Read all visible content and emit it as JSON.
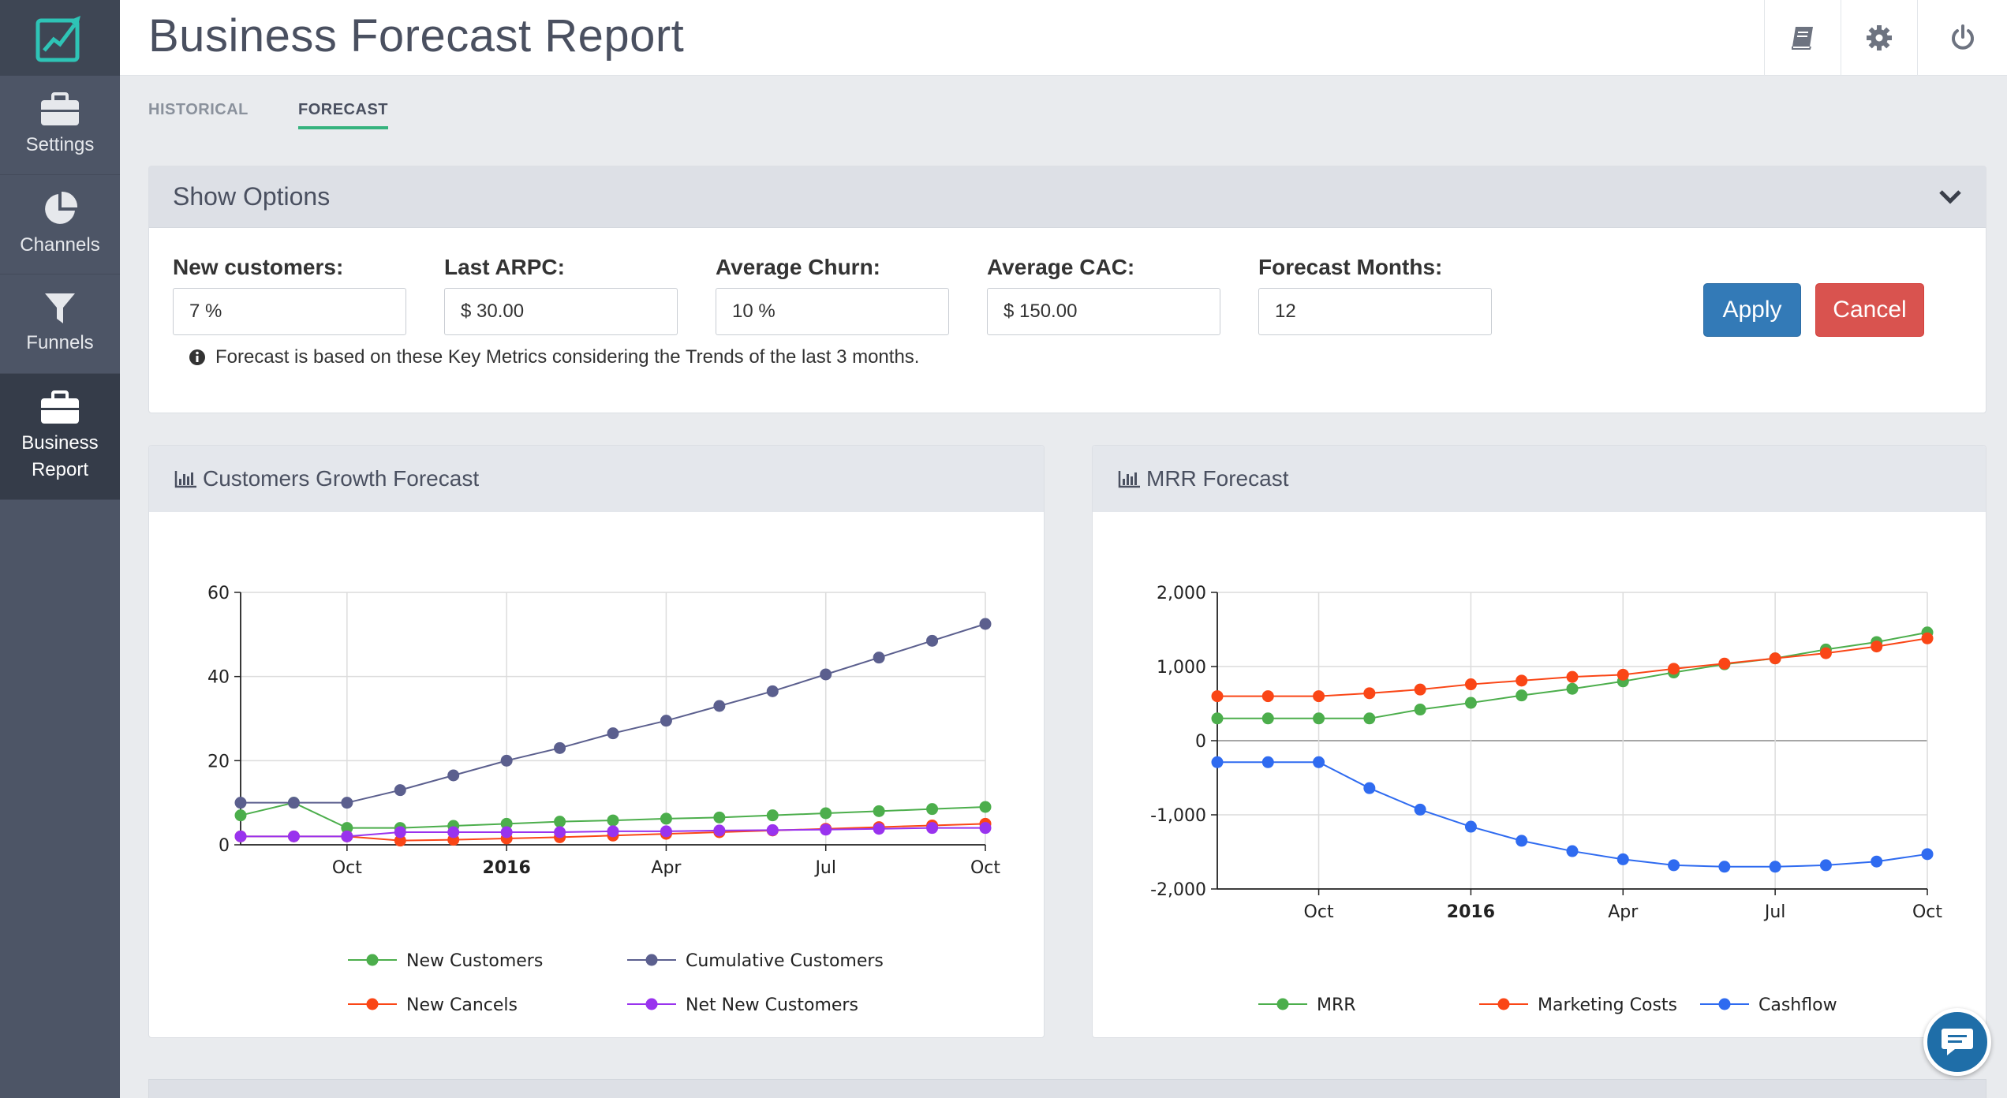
{
  "app": {
    "page_title": "Business Forecast Report"
  },
  "sidebar": {
    "items": [
      {
        "label": "Settings",
        "icon": "briefcase-icon"
      },
      {
        "label": "Channels",
        "icon": "pie-chart-icon"
      },
      {
        "label": "Funnels",
        "icon": "filter-icon"
      },
      {
        "label": "Business Report",
        "icon": "briefcase-icon",
        "active": true
      }
    ]
  },
  "header": {
    "buttons": [
      {
        "icon": "book-icon"
      },
      {
        "icon": "gear-icon"
      },
      {
        "icon": "power-icon"
      }
    ]
  },
  "tabs": [
    {
      "label": "HISTORICAL",
      "active": false
    },
    {
      "label": "FORECAST",
      "active": true
    }
  ],
  "options": {
    "title": "Show Options",
    "fields": [
      {
        "label": "New customers:",
        "value": "7 %"
      },
      {
        "label": "Last ARPC:",
        "value": "$ 30.00"
      },
      {
        "label": "Average Churn:",
        "value": "10 %"
      },
      {
        "label": "Average CAC:",
        "value": "$ 150.00"
      },
      {
        "label": "Forecast Months:",
        "value": "12"
      }
    ],
    "apply_label": "Apply",
    "cancel_label": "Cancel",
    "note": "Forecast is based on these Key Metrics considering the Trends of the last 3 months."
  },
  "colors": {
    "green": "#4cae4c",
    "navy": "#5b5f8e",
    "red": "#fa4616",
    "purple": "#9933ee",
    "blue": "#2f6bf0",
    "accent": "#36b37e"
  },
  "chart_data": [
    {
      "type": "line",
      "title": "Customers Growth Forecast",
      "x": [
        "2015-08",
        "2015-09",
        "2015-10",
        "2015-11",
        "2015-12",
        "2016-01",
        "2016-02",
        "2016-03",
        "2016-04",
        "2016-05",
        "2016-06",
        "2016-07",
        "2016-08",
        "2016-09",
        "2016-10"
      ],
      "x_tick_labels": [
        "Oct",
        "2016",
        "Apr",
        "Jul",
        "Oct"
      ],
      "ylim": [
        0,
        60
      ],
      "y_ticks": [
        0,
        20,
        40,
        60
      ],
      "grid": true,
      "legend_position": "bottom",
      "series": [
        {
          "name": "New Customers",
          "color": "#4cae4c",
          "values": [
            7,
            10,
            4,
            4,
            4.5,
            5,
            5.5,
            5.8,
            6.2,
            6.5,
            7,
            7.5,
            8,
            8.5,
            9
          ]
        },
        {
          "name": "Cumulative Customers",
          "color": "#5b5f8e",
          "values": [
            10,
            10,
            10,
            13,
            16.5,
            20,
            23,
            26.5,
            29.5,
            33,
            36.5,
            40.5,
            44.5,
            48.5,
            52.5
          ]
        },
        {
          "name": "New Cancels",
          "color": "#fa4616",
          "values": [
            2,
            2,
            2,
            1,
            1.2,
            1.5,
            1.8,
            2.2,
            2.6,
            3,
            3.4,
            3.8,
            4.2,
            4.6,
            5
          ]
        },
        {
          "name": "Net New Customers",
          "color": "#9933ee",
          "values": [
            2,
            2,
            2,
            3,
            3,
            3,
            3,
            3.2,
            3.2,
            3.4,
            3.5,
            3.6,
            3.8,
            4,
            4
          ]
        }
      ]
    },
    {
      "type": "line",
      "title": "MRR Forecast",
      "x": [
        "2015-08",
        "2015-09",
        "2015-10",
        "2015-11",
        "2015-12",
        "2016-01",
        "2016-02",
        "2016-03",
        "2016-04",
        "2016-05",
        "2016-06",
        "2016-07",
        "2016-08",
        "2016-09",
        "2016-10"
      ],
      "x_tick_labels": [
        "Oct",
        "2016",
        "Apr",
        "Jul",
        "Oct"
      ],
      "ylim": [
        -2000,
        2000
      ],
      "y_ticks": [
        -2000,
        -1000,
        0,
        1000,
        2000
      ],
      "y_tick_labels": [
        "-2,000",
        "-1,000",
        "0",
        "1,000",
        "2,000"
      ],
      "grid": true,
      "legend_position": "bottom",
      "series": [
        {
          "name": "MRR",
          "color": "#4cae4c",
          "values": [
            300,
            300,
            300,
            300,
            420,
            510,
            610,
            700,
            800,
            920,
            1030,
            1110,
            1230,
            1330,
            1460
          ]
        },
        {
          "name": "Marketing Costs",
          "color": "#fa4616",
          "values": [
            600,
            600,
            600,
            640,
            690,
            760,
            810,
            860,
            890,
            970,
            1040,
            1110,
            1180,
            1270,
            1380
          ]
        },
        {
          "name": "Cashflow",
          "color": "#2f6bf0",
          "values": [
            -290,
            -290,
            -290,
            -640,
            -930,
            -1160,
            -1350,
            -1490,
            -1600,
            -1680,
            -1700,
            -1700,
            -1680,
            -1630,
            -1530
          ]
        }
      ]
    }
  ]
}
